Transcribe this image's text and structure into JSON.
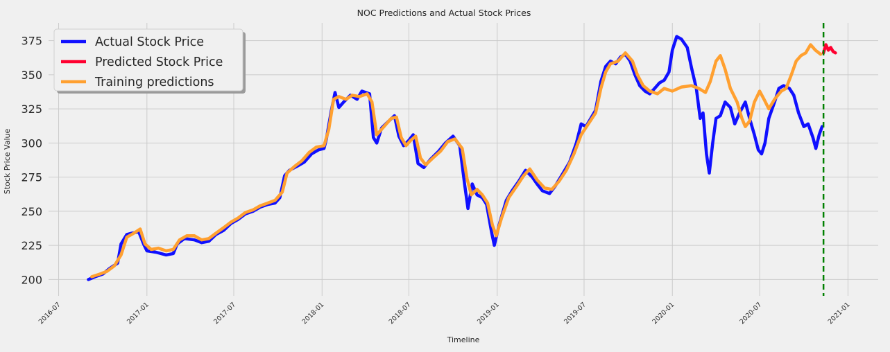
{
  "chart_data": {
    "type": "line",
    "title": "NOC Predictions and Actual Stock Prices",
    "xlabel": "Timeline",
    "ylabel": "Stock Price Value",
    "xlim": [
      "2016-06-10",
      "2021-03-05"
    ],
    "ylim": [
      188,
      388
    ],
    "yticks": [
      200,
      225,
      250,
      275,
      300,
      325,
      350,
      375
    ],
    "xticks": [
      "2016-07",
      "2017-01",
      "2017-07",
      "2018-01",
      "2018-07",
      "2019-01",
      "2019-07",
      "2020-01",
      "2020-07",
      "2021-01"
    ],
    "grid": true,
    "legend_position": "upper-left",
    "vline": {
      "date": "2020-11-11",
      "color": "#008000",
      "style": "dashed"
    },
    "colors": {
      "background": "#f0f0f0",
      "grid": "#cbcbcb",
      "actual": "#1010ff",
      "predicted": "#ff0030",
      "training": "#ffa030"
    },
    "series": [
      {
        "name": "Actual Stock Price",
        "color": "#1010ff",
        "points": [
          [
            "2016-09-01",
            200
          ],
          [
            "2016-09-15",
            202
          ],
          [
            "2016-10-01",
            204
          ],
          [
            "2016-10-15",
            208
          ],
          [
            "2016-11-01",
            212
          ],
          [
            "2016-11-08",
            226
          ],
          [
            "2016-11-20",
            233
          ],
          [
            "2016-12-01",
            234
          ],
          [
            "2016-12-15",
            235
          ],
          [
            "2016-12-25",
            226
          ],
          [
            "2017-01-01",
            221
          ],
          [
            "2017-01-20",
            220
          ],
          [
            "2017-02-10",
            218
          ],
          [
            "2017-02-25",
            219
          ],
          [
            "2017-03-05",
            226
          ],
          [
            "2017-03-20",
            230
          ],
          [
            "2017-04-10",
            229
          ],
          [
            "2017-04-25",
            227
          ],
          [
            "2017-05-10",
            228
          ],
          [
            "2017-05-25",
            233
          ],
          [
            "2017-06-10",
            236
          ],
          [
            "2017-06-25",
            241
          ],
          [
            "2017-07-10",
            244
          ],
          [
            "2017-07-25",
            248
          ],
          [
            "2017-08-10",
            250
          ],
          [
            "2017-08-25",
            253
          ],
          [
            "2017-09-10",
            255
          ],
          [
            "2017-09-25",
            256
          ],
          [
            "2017-10-05",
            260
          ],
          [
            "2017-10-15",
            276
          ],
          [
            "2017-10-25",
            280
          ],
          [
            "2017-11-10",
            283
          ],
          [
            "2017-11-25",
            286
          ],
          [
            "2017-12-10",
            292
          ],
          [
            "2017-12-25",
            295
          ],
          [
            "2018-01-05",
            296
          ],
          [
            "2018-01-10",
            303
          ],
          [
            "2018-01-20",
            323
          ],
          [
            "2018-01-28",
            337
          ],
          [
            "2018-02-05",
            326
          ],
          [
            "2018-02-15",
            330
          ],
          [
            "2018-03-01",
            335
          ],
          [
            "2018-03-15",
            332
          ],
          [
            "2018-03-25",
            338
          ],
          [
            "2018-04-10",
            336
          ],
          [
            "2018-04-18",
            304
          ],
          [
            "2018-04-25",
            300
          ],
          [
            "2018-05-05",
            311
          ],
          [
            "2018-05-20",
            316
          ],
          [
            "2018-06-01",
            320
          ],
          [
            "2018-06-10",
            305
          ],
          [
            "2018-06-20",
            298
          ],
          [
            "2018-07-01",
            302
          ],
          [
            "2018-07-10",
            306
          ],
          [
            "2018-07-20",
            285
          ],
          [
            "2018-08-01",
            282
          ],
          [
            "2018-08-15",
            288
          ],
          [
            "2018-09-01",
            294
          ],
          [
            "2018-09-15",
            300
          ],
          [
            "2018-10-01",
            305
          ],
          [
            "2018-10-15",
            298
          ],
          [
            "2018-10-25",
            270
          ],
          [
            "2018-11-01",
            252
          ],
          [
            "2018-11-10",
            270
          ],
          [
            "2018-11-20",
            262
          ],
          [
            "2018-12-01",
            260
          ],
          [
            "2018-12-10",
            255
          ],
          [
            "2018-12-20",
            235
          ],
          [
            "2018-12-26",
            225
          ],
          [
            "2019-01-05",
            240
          ],
          [
            "2019-01-20",
            258
          ],
          [
            "2019-02-01",
            265
          ],
          [
            "2019-02-15",
            272
          ],
          [
            "2019-03-01",
            280
          ],
          [
            "2019-03-15",
            275
          ],
          [
            "2019-03-25",
            270
          ],
          [
            "2019-04-05",
            265
          ],
          [
            "2019-04-20",
            263
          ],
          [
            "2019-05-01",
            268
          ],
          [
            "2019-05-15",
            276
          ],
          [
            "2019-06-01",
            286
          ],
          [
            "2019-06-15",
            300
          ],
          [
            "2019-06-25",
            314
          ],
          [
            "2019-07-05",
            312
          ],
          [
            "2019-07-15",
            318
          ],
          [
            "2019-07-25",
            324
          ],
          [
            "2019-08-05",
            345
          ],
          [
            "2019-08-15",
            356
          ],
          [
            "2019-08-25",
            360
          ],
          [
            "2019-09-05",
            358
          ],
          [
            "2019-09-15",
            363
          ],
          [
            "2019-09-25",
            365
          ],
          [
            "2019-10-05",
            360
          ],
          [
            "2019-10-15",
            350
          ],
          [
            "2019-10-25",
            342
          ],
          [
            "2019-11-05",
            338
          ],
          [
            "2019-11-15",
            336
          ],
          [
            "2019-11-25",
            340
          ],
          [
            "2019-12-05",
            344
          ],
          [
            "2019-12-15",
            346
          ],
          [
            "2019-12-25",
            352
          ],
          [
            "2020-01-01",
            368
          ],
          [
            "2020-01-10",
            378
          ],
          [
            "2020-01-20",
            376
          ],
          [
            "2020-02-01",
            370
          ],
          [
            "2020-02-10",
            355
          ],
          [
            "2020-02-20",
            340
          ],
          [
            "2020-02-28",
            318
          ],
          [
            "2020-03-05",
            322
          ],
          [
            "2020-03-12",
            292
          ],
          [
            "2020-03-18",
            278
          ],
          [
            "2020-03-25",
            300
          ],
          [
            "2020-04-01",
            318
          ],
          [
            "2020-04-10",
            320
          ],
          [
            "2020-04-20",
            330
          ],
          [
            "2020-05-01",
            326
          ],
          [
            "2020-05-10",
            314
          ],
          [
            "2020-05-20",
            322
          ],
          [
            "2020-06-01",
            330
          ],
          [
            "2020-06-10",
            318
          ],
          [
            "2020-06-20",
            306
          ],
          [
            "2020-06-28",
            295
          ],
          [
            "2020-07-05",
            292
          ],
          [
            "2020-07-12",
            300
          ],
          [
            "2020-07-20",
            318
          ],
          [
            "2020-08-01",
            330
          ],
          [
            "2020-08-10",
            340
          ],
          [
            "2020-08-20",
            342
          ],
          [
            "2020-09-01",
            340
          ],
          [
            "2020-09-10",
            335
          ],
          [
            "2020-09-20",
            322
          ],
          [
            "2020-10-01",
            312
          ],
          [
            "2020-10-10",
            314
          ],
          [
            "2020-10-20",
            304
          ],
          [
            "2020-10-26",
            296
          ],
          [
            "2020-11-02",
            306
          ],
          [
            "2020-11-08",
            312
          ]
        ]
      },
      {
        "name": "Predicted Stock Price",
        "color": "#ff0030",
        "points": [
          [
            "2020-11-11",
            366
          ],
          [
            "2020-11-16",
            372
          ],
          [
            "2020-11-21",
            368
          ],
          [
            "2020-11-26",
            370
          ],
          [
            "2020-12-01",
            367
          ],
          [
            "2020-12-06",
            366
          ]
        ]
      },
      {
        "name": "Training predictions",
        "color": "#ffa030",
        "points": [
          [
            "2016-09-08",
            202
          ],
          [
            "2016-09-25",
            204
          ],
          [
            "2016-10-10",
            206
          ],
          [
            "2016-10-25",
            210
          ],
          [
            "2016-11-08",
            218
          ],
          [
            "2016-11-20",
            231
          ],
          [
            "2016-12-05",
            234
          ],
          [
            "2016-12-18",
            237
          ],
          [
            "2016-12-28",
            226
          ],
          [
            "2017-01-10",
            222
          ],
          [
            "2017-01-25",
            223
          ],
          [
            "2017-02-10",
            221
          ],
          [
            "2017-02-25",
            222
          ],
          [
            "2017-03-10",
            229
          ],
          [
            "2017-03-25",
            232
          ],
          [
            "2017-04-10",
            232
          ],
          [
            "2017-04-25",
            229
          ],
          [
            "2017-05-10",
            230
          ],
          [
            "2017-05-25",
            234
          ],
          [
            "2017-06-10",
            238
          ],
          [
            "2017-06-25",
            242
          ],
          [
            "2017-07-10",
            245
          ],
          [
            "2017-07-25",
            249
          ],
          [
            "2017-08-10",
            251
          ],
          [
            "2017-08-25",
            254
          ],
          [
            "2017-09-10",
            256
          ],
          [
            "2017-09-25",
            258
          ],
          [
            "2017-10-10",
            264
          ],
          [
            "2017-10-20",
            278
          ],
          [
            "2017-11-05",
            283
          ],
          [
            "2017-11-20",
            287
          ],
          [
            "2017-12-05",
            293
          ],
          [
            "2017-12-20",
            297
          ],
          [
            "2018-01-05",
            298
          ],
          [
            "2018-01-15",
            310
          ],
          [
            "2018-01-25",
            332
          ],
          [
            "2018-02-05",
            334
          ],
          [
            "2018-02-20",
            332
          ],
          [
            "2018-03-05",
            335
          ],
          [
            "2018-03-20",
            334
          ],
          [
            "2018-04-05",
            336
          ],
          [
            "2018-04-15",
            330
          ],
          [
            "2018-04-25",
            306
          ],
          [
            "2018-05-10",
            312
          ],
          [
            "2018-05-25",
            318
          ],
          [
            "2018-06-05",
            319
          ],
          [
            "2018-06-15",
            304
          ],
          [
            "2018-06-25",
            298
          ],
          [
            "2018-07-05",
            302
          ],
          [
            "2018-07-15",
            305
          ],
          [
            "2018-07-25",
            289
          ],
          [
            "2018-08-05",
            284
          ],
          [
            "2018-08-20",
            289
          ],
          [
            "2018-09-05",
            294
          ],
          [
            "2018-09-20",
            301
          ],
          [
            "2018-10-05",
            303
          ],
          [
            "2018-10-20",
            296
          ],
          [
            "2018-10-30",
            274
          ],
          [
            "2018-11-08",
            262
          ],
          [
            "2018-11-20",
            266
          ],
          [
            "2018-12-01",
            262
          ],
          [
            "2018-12-12",
            256
          ],
          [
            "2018-12-22",
            240
          ],
          [
            "2018-12-30",
            232
          ],
          [
            "2019-01-10",
            245
          ],
          [
            "2019-01-25",
            260
          ],
          [
            "2019-02-10",
            268
          ],
          [
            "2019-02-25",
            276
          ],
          [
            "2019-03-10",
            281
          ],
          [
            "2019-03-25",
            273
          ],
          [
            "2019-04-10",
            267
          ],
          [
            "2019-04-25",
            266
          ],
          [
            "2019-05-10",
            272
          ],
          [
            "2019-05-25",
            280
          ],
          [
            "2019-06-10",
            292
          ],
          [
            "2019-06-25",
            306
          ],
          [
            "2019-07-10",
            314
          ],
          [
            "2019-07-25",
            322
          ],
          [
            "2019-08-05",
            340
          ],
          [
            "2019-08-15",
            352
          ],
          [
            "2019-08-25",
            358
          ],
          [
            "2019-09-10",
            360
          ],
          [
            "2019-09-25",
            366
          ],
          [
            "2019-10-10",
            360
          ],
          [
            "2019-10-20",
            350
          ],
          [
            "2019-11-01",
            342
          ],
          [
            "2019-11-15",
            338
          ],
          [
            "2019-12-01",
            336
          ],
          [
            "2019-12-15",
            340
          ],
          [
            "2020-01-01",
            338
          ],
          [
            "2020-01-20",
            341
          ],
          [
            "2020-02-10",
            342
          ],
          [
            "2020-02-25",
            340
          ],
          [
            "2020-03-10",
            337
          ],
          [
            "2020-03-20",
            345
          ],
          [
            "2020-04-01",
            360
          ],
          [
            "2020-04-10",
            364
          ],
          [
            "2020-04-20",
            354
          ],
          [
            "2020-05-01",
            340
          ],
          [
            "2020-05-15",
            330
          ],
          [
            "2020-05-25",
            318
          ],
          [
            "2020-06-01",
            312
          ],
          [
            "2020-06-10",
            316
          ],
          [
            "2020-06-20",
            330
          ],
          [
            "2020-07-01",
            338
          ],
          [
            "2020-07-10",
            332
          ],
          [
            "2020-07-20",
            325
          ],
          [
            "2020-08-01",
            332
          ],
          [
            "2020-08-15",
            338
          ],
          [
            "2020-08-25",
            340
          ],
          [
            "2020-09-05",
            350
          ],
          [
            "2020-09-15",
            360
          ],
          [
            "2020-09-25",
            364
          ],
          [
            "2020-10-05",
            366
          ],
          [
            "2020-10-15",
            372
          ],
          [
            "2020-10-25",
            368
          ],
          [
            "2020-11-05",
            365
          ]
        ]
      }
    ]
  }
}
